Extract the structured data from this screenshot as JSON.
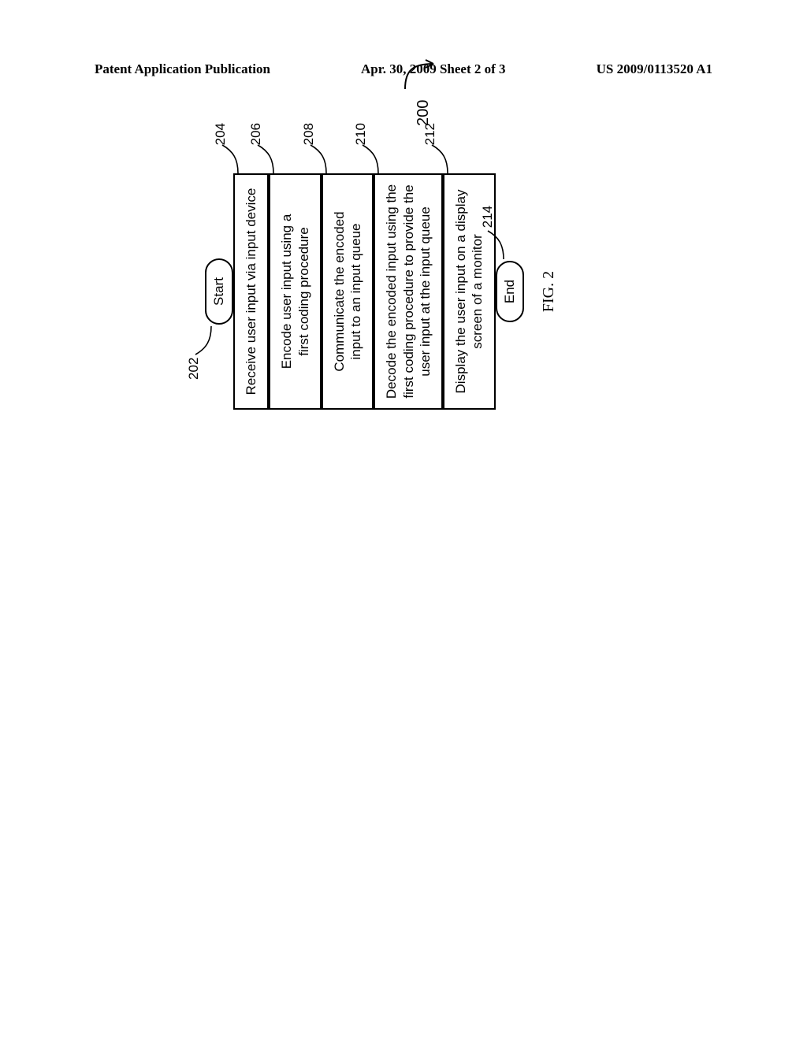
{
  "header": {
    "left": "Patent Application Publication",
    "center": "Apr. 30, 2009  Sheet 2 of 3",
    "right": "US 2009/0113520 A1"
  },
  "diagram": {
    "type": "flowchart",
    "figure_label": "FIG. 2",
    "overall_ref": "200",
    "background_color": "#ffffff",
    "stroke_color": "#000000",
    "text_color": "#000000",
    "box_border_width": 2,
    "terminator_radius": 22,
    "process_width": 300,
    "arrow_length": 30,
    "font_family": "Arial",
    "box_fontsize": 17,
    "fig_fontsize": 20,
    "rotation_deg": -90,
    "nodes": [
      {
        "id": "n202",
        "kind": "terminator",
        "label": "Start",
        "ref": "202",
        "ref_side": "left"
      },
      {
        "id": "n204",
        "kind": "process",
        "label": "Receive user input via input device",
        "ref": "204",
        "ref_side": "right"
      },
      {
        "id": "n206",
        "kind": "process",
        "label": "Encode user input using a\nfirst coding procedure",
        "ref": "206",
        "ref_side": "right"
      },
      {
        "id": "n208",
        "kind": "process",
        "label": "Communicate the encoded\ninput to an input queue",
        "ref": "208",
        "ref_side": "right"
      },
      {
        "id": "n210",
        "kind": "process",
        "label": "Decode the encoded input using the\nfirst coding procedure to provide the\nuser input at the input queue",
        "ref": "210",
        "ref_side": "right"
      },
      {
        "id": "n212",
        "kind": "process",
        "label": "Display the user input on a display\nscreen of a monitor",
        "ref": "212",
        "ref_side": "right"
      },
      {
        "id": "n214",
        "kind": "terminator",
        "label": "End",
        "ref": "214",
        "ref_side": "right"
      }
    ],
    "edges": [
      {
        "from": "n202",
        "to": "n204"
      },
      {
        "from": "n204",
        "to": "n206"
      },
      {
        "from": "n206",
        "to": "n208"
      },
      {
        "from": "n208",
        "to": "n210"
      },
      {
        "from": "n210",
        "to": "n212"
      },
      {
        "from": "n212",
        "to": "n214"
      }
    ]
  }
}
